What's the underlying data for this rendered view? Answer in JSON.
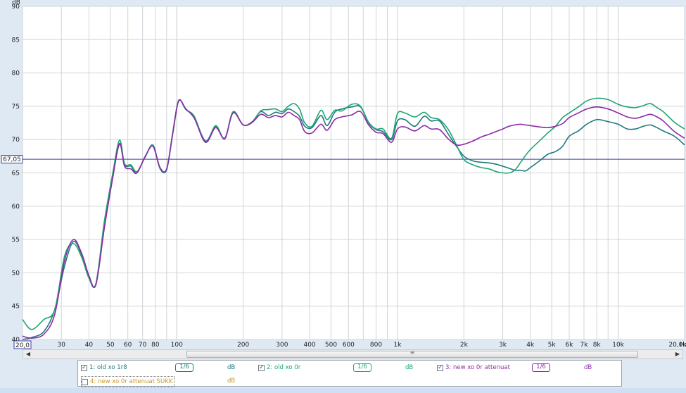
{
  "chart_data": {
    "type": "line",
    "x_scale": "log",
    "xlim": [
      20,
      20000
    ],
    "ylim": [
      40,
      90
    ],
    "ylabel": "dB",
    "xlabel": "Hz",
    "grid": true,
    "y_ticks": [
      "90",
      "85",
      "80",
      "75",
      "70",
      "65",
      "60",
      "55",
      "50",
      "45",
      "40"
    ],
    "x_ticks": [
      {
        "value": 30,
        "label": "30"
      },
      {
        "value": 40,
        "label": "40"
      },
      {
        "value": 50,
        "label": "50"
      },
      {
        "value": 60,
        "label": "60"
      },
      {
        "value": 70,
        "label": "70"
      },
      {
        "value": 80,
        "label": "80"
      },
      {
        "value": 100,
        "label": "100"
      },
      {
        "value": 200,
        "label": "200"
      },
      {
        "value": 300,
        "label": "300"
      },
      {
        "value": 400,
        "label": "400"
      },
      {
        "value": 500,
        "label": "500"
      },
      {
        "value": 600,
        "label": "600"
      },
      {
        "value": 800,
        "label": "800"
      },
      {
        "value": 1000,
        "label": "1k"
      },
      {
        "value": 2000,
        "label": "2k"
      },
      {
        "value": 3000,
        "label": "3k"
      },
      {
        "value": 4000,
        "label": "4k"
      },
      {
        "value": 5000,
        "label": "5k"
      },
      {
        "value": 6000,
        "label": "6k"
      },
      {
        "value": 7000,
        "label": "7k"
      },
      {
        "value": 8000,
        "label": "8k"
      },
      {
        "value": 10000,
        "label": "10k"
      },
      {
        "value": 20000,
        "label": "20,0k"
      }
    ],
    "x_min_label": "20,0",
    "cursor_value": 67.05,
    "cursor_label": "67,05",
    "series": [
      {
        "name": "1: old xo 1r8",
        "color": "#1e7a7e",
        "x": [
          20,
          22,
          25,
          28,
          31,
          34,
          37,
          40,
          43,
          47,
          51,
          55,
          58,
          62,
          66,
          72,
          78,
          84,
          90,
          96,
          102,
          110,
          120,
          135,
          150,
          165,
          180,
          200,
          220,
          240,
          260,
          280,
          300,
          320,
          340,
          360,
          380,
          410,
          450,
          480,
          520,
          560,
          620,
          680,
          740,
          800,
          860,
          940,
          1000,
          1080,
          1200,
          1320,
          1420,
          1550,
          1700,
          1850,
          2000,
          2200,
          2400,
          2600,
          2800,
          3000,
          3200,
          3400,
          3600,
          3800,
          4000,
          4400,
          4800,
          5200,
          5600,
          6000,
          6600,
          7200,
          8000,
          9000,
          10000,
          11000,
          12000,
          13000,
          14000,
          15000,
          16000,
          18000,
          20000
        ],
        "y": [
          40.0,
          40.3,
          41.2,
          44.5,
          51.0,
          54.7,
          52.8,
          49.5,
          48.3,
          57.0,
          64.0,
          69.3,
          66.2,
          66.0,
          65.0,
          67.5,
          69.0,
          65.7,
          65.5,
          71.0,
          75.8,
          74.5,
          73.4,
          69.8,
          72.0,
          70.2,
          74.1,
          72.2,
          72.7,
          74.2,
          73.6,
          74.1,
          73.9,
          74.6,
          74.2,
          73.5,
          72.0,
          71.8,
          73.6,
          72.1,
          74.1,
          74.6,
          74.9,
          74.9,
          72.5,
          71.5,
          71.2,
          70.0,
          72.8,
          73.0,
          72.0,
          73.5,
          72.8,
          72.8,
          70.8,
          69.0,
          67.5,
          66.8,
          66.6,
          66.5,
          66.3,
          66.0,
          65.7,
          65.4,
          65.4,
          65.3,
          65.8,
          66.8,
          67.8,
          68.2,
          69.0,
          70.5,
          71.3,
          72.3,
          73.0,
          72.7,
          72.3,
          71.6,
          71.6,
          72.0,
          72.2,
          71.8,
          71.3,
          70.5,
          69.2
        ]
      },
      {
        "name": "2: old xo 0r",
        "color": "#1fa774",
        "x": [
          20,
          22,
          25,
          28,
          31,
          34,
          37,
          40,
          43,
          47,
          51,
          55,
          58,
          62,
          66,
          72,
          78,
          84,
          90,
          96,
          102,
          110,
          120,
          135,
          150,
          165,
          180,
          200,
          220,
          240,
          260,
          280,
          300,
          320,
          340,
          360,
          380,
          410,
          450,
          480,
          520,
          560,
          620,
          680,
          740,
          800,
          860,
          940,
          1000,
          1080,
          1200,
          1320,
          1420,
          1550,
          1700,
          1850,
          2000,
          2200,
          2400,
          2600,
          2800,
          3000,
          3200,
          3400,
          3600,
          3800,
          4000,
          4400,
          4800,
          5200,
          5600,
          6000,
          6600,
          7200,
          8000,
          9000,
          10000,
          11000,
          12000,
          13000,
          14000,
          15000,
          16000,
          18000,
          20000
        ],
        "y": [
          43.0,
          41.5,
          43.0,
          44.5,
          52.5,
          54.4,
          52.4,
          49.2,
          48.4,
          57.8,
          64.5,
          69.9,
          66.4,
          66.2,
          65.2,
          67.4,
          69.2,
          65.6,
          65.6,
          71.2,
          75.9,
          74.5,
          73.5,
          69.6,
          72.1,
          70.1,
          74.2,
          72.2,
          72.6,
          74.3,
          74.5,
          74.6,
          74.2,
          75.0,
          75.4,
          74.6,
          72.5,
          72.0,
          74.4,
          73.0,
          74.4,
          74.3,
          75.3,
          75.0,
          72.6,
          71.6,
          71.6,
          70.2,
          73.9,
          74.0,
          73.4,
          74.1,
          73.3,
          73.0,
          71.5,
          69.2,
          67.0,
          66.2,
          65.8,
          65.6,
          65.2,
          65.0,
          65.0,
          65.4,
          66.5,
          67.6,
          68.5,
          69.8,
          71.0,
          72.0,
          73.3,
          74.0,
          74.9,
          75.8,
          76.2,
          76.0,
          75.3,
          74.9,
          74.8,
          75.1,
          75.4,
          74.8,
          74.2,
          72.6,
          71.6
        ]
      },
      {
        "name": "3: new xo 0r attenuat",
        "color": "#8e2aa8",
        "x": [
          20,
          22,
          25,
          28,
          31,
          34,
          37,
          40,
          43,
          47,
          51,
          55,
          58,
          62,
          66,
          72,
          78,
          84,
          90,
          96,
          102,
          110,
          120,
          135,
          150,
          165,
          180,
          200,
          220,
          240,
          260,
          280,
          300,
          320,
          340,
          360,
          380,
          410,
          450,
          480,
          520,
          560,
          620,
          680,
          740,
          800,
          860,
          940,
          1000,
          1080,
          1200,
          1320,
          1420,
          1550,
          1700,
          1850,
          2000,
          2200,
          2400,
          2600,
          2800,
          3000,
          3200,
          3400,
          3600,
          3800,
          4000,
          4400,
          4800,
          5200,
          5600,
          6000,
          6600,
          7200,
          8000,
          9000,
          10000,
          11000,
          12000,
          13000,
          14000,
          15000,
          16000,
          18000,
          20000
        ],
        "y": [
          40.5,
          40.2,
          40.8,
          43.8,
          51.8,
          55.0,
          53.0,
          49.6,
          48.2,
          56.8,
          63.8,
          69.4,
          66.0,
          65.6,
          65.0,
          67.5,
          69.0,
          65.8,
          65.6,
          71.0,
          75.8,
          74.6,
          73.2,
          69.6,
          71.8,
          70.2,
          74.0,
          72.2,
          72.6,
          73.8,
          73.3,
          73.6,
          73.4,
          74.1,
          73.6,
          73.0,
          71.2,
          71.0,
          72.3,
          71.4,
          73.0,
          73.4,
          73.7,
          74.2,
          72.2,
          71.1,
          70.9,
          69.6,
          71.6,
          71.9,
          71.3,
          72.1,
          71.6,
          71.5,
          70.1,
          69.2,
          69.3,
          69.8,
          70.4,
          70.8,
          71.2,
          71.6,
          72.0,
          72.2,
          72.3,
          72.2,
          72.1,
          71.9,
          71.8,
          72.0,
          72.4,
          73.3,
          74.0,
          74.6,
          74.9,
          74.6,
          74.0,
          73.4,
          73.2,
          73.5,
          73.8,
          73.4,
          72.8,
          71.2,
          70.2
        ]
      },
      {
        "name": "4: new xo 0r attenuat SUKK",
        "color": "#c8962a",
        "visible": false
      }
    ]
  },
  "legend": {
    "items": [
      {
        "label": "1: old xo 1r8",
        "checked": true,
        "smoothing": "1/6",
        "unit": "dB",
        "color": "#1e7a7e"
      },
      {
        "label": "2: old xo 0r",
        "checked": true,
        "smoothing": "1/6",
        "unit": "dB",
        "color": "#1fa774"
      },
      {
        "label": "3: new xo 0r attenuat",
        "checked": true,
        "smoothing": "1/6",
        "unit": "dB",
        "color": "#8e2aa8"
      },
      {
        "label": "4: new xo 0r attenuat SUKK",
        "checked": false,
        "smoothing": "",
        "unit": "dB",
        "color": "#c8962a"
      }
    ]
  },
  "scrollbar": {
    "left_arrow": "◀",
    "right_arrow": "▶",
    "grip": "≡"
  }
}
